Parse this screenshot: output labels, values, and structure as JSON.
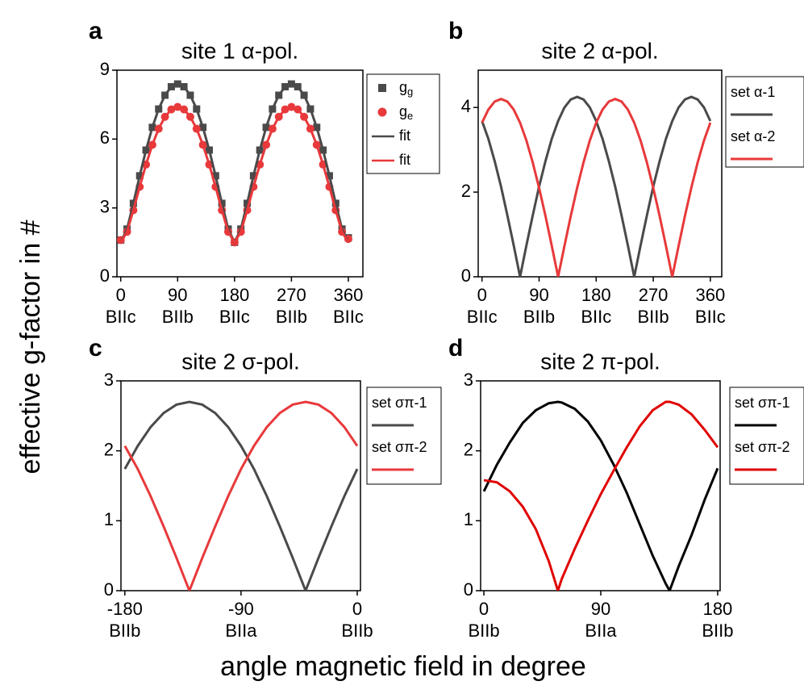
{
  "ylabel": "effective g-factor in #",
  "xlabel": "angle magnetic field in degree",
  "chart_data": [
    {
      "type": "line",
      "label": "a",
      "title": "site 1 α-pol.",
      "x": [
        0,
        10,
        20,
        30,
        40,
        50,
        60,
        70,
        80,
        90,
        100,
        110,
        120,
        130,
        140,
        150,
        160,
        170,
        180,
        190,
        200,
        210,
        220,
        230,
        240,
        250,
        260,
        270,
        280,
        290,
        300,
        310,
        320,
        330,
        340,
        350,
        360
      ],
      "xlim": [
        -6,
        383
      ],
      "xticks": [
        0,
        90,
        180,
        270,
        360
      ],
      "xtick_sublabels": [
        "BIIc",
        "BIIb",
        "BIIc",
        "BIIb",
        "BIIc"
      ],
      "ylim": [
        0,
        9
      ],
      "yticks": [
        0,
        3,
        6,
        9
      ],
      "series": [
        {
          "name": "g",
          "name_sub": "g",
          "color": "#4a4a4a",
          "marker": "square",
          "values": [
            1.6,
            2.08,
            3.2,
            4.4,
            5.52,
            6.51,
            7.31,
            7.91,
            8.28,
            8.4,
            8.28,
            7.91,
            7.31,
            6.51,
            5.52,
            4.4,
            3.2,
            2.08,
            1.5,
            2.08,
            3.2,
            4.4,
            5.52,
            6.51,
            7.31,
            7.91,
            8.28,
            8.4,
            8.28,
            7.91,
            7.31,
            6.51,
            5.52,
            4.4,
            3.2,
            2.08,
            1.7
          ]
        },
        {
          "name": "g",
          "name_sub": "e",
          "color": "#e8393b",
          "marker": "circle",
          "values": [
            1.6,
            1.96,
            2.9,
            3.92,
            4.89,
            5.75,
            6.45,
            6.97,
            7.29,
            7.4,
            7.29,
            6.97,
            6.45,
            5.75,
            4.89,
            3.92,
            2.9,
            1.96,
            1.5,
            1.96,
            2.9,
            3.92,
            4.89,
            5.75,
            6.45,
            6.97,
            7.29,
            7.4,
            7.29,
            6.97,
            6.45,
            5.75,
            4.89,
            3.92,
            2.9,
            1.96,
            1.65
          ]
        },
        {
          "name": "fit",
          "color": "#4a4a4a",
          "values": [
            1.5,
            2.08,
            3.2,
            4.4,
            5.52,
            6.51,
            7.31,
            7.91,
            8.28,
            8.4,
            8.28,
            7.91,
            7.31,
            6.51,
            5.52,
            4.4,
            3.2,
            2.08,
            1.5,
            2.08,
            3.2,
            4.4,
            5.52,
            6.51,
            7.31,
            7.91,
            8.28,
            8.4,
            8.28,
            7.91,
            7.31,
            6.51,
            5.52,
            4.4,
            3.2,
            2.08,
            1.5
          ]
        },
        {
          "name": "fit",
          "color": "#e8393b",
          "values": [
            1.5,
            1.96,
            2.9,
            3.92,
            4.89,
            5.75,
            6.45,
            6.97,
            7.29,
            7.4,
            7.29,
            6.97,
            6.45,
            5.75,
            4.89,
            3.92,
            2.9,
            1.96,
            1.5,
            1.96,
            2.9,
            3.92,
            4.89,
            5.75,
            6.45,
            6.97,
            7.29,
            7.4,
            7.29,
            6.97,
            6.45,
            5.75,
            4.89,
            3.92,
            2.9,
            1.96,
            1.5
          ]
        }
      ]
    },
    {
      "type": "line",
      "label": "b",
      "title": "site 2 α-pol.",
      "x": [
        0,
        10,
        20,
        30,
        40,
        50,
        60,
        70,
        80,
        90,
        100,
        110,
        120,
        130,
        140,
        150,
        160,
        170,
        180,
        190,
        200,
        210,
        220,
        230,
        240,
        250,
        260,
        270,
        280,
        290,
        300,
        310,
        320,
        330,
        340,
        350,
        360
      ],
      "xlim": [
        -6,
        378
      ],
      "xticks": [
        0,
        90,
        180,
        270,
        360
      ],
      "xtick_sublabels": [
        "BIIc",
        "BIIb",
        "BIIc",
        "BIIb",
        "BIIc"
      ],
      "ylim": [
        0,
        4.88
      ],
      "yticks": [
        0,
        2,
        4
      ],
      "series": [
        {
          "name": "set α-1",
          "color": "#4a4a4a",
          "values": [
            3.68,
            3.26,
            2.73,
            2.13,
            1.45,
            0.74,
            0,
            0.74,
            1.45,
            2.13,
            2.73,
            3.26,
            3.68,
            4.0,
            4.19,
            4.25,
            4.19,
            4.0,
            3.68,
            3.26,
            2.73,
            2.13,
            1.45,
            0.74,
            0,
            0.74,
            1.45,
            2.13,
            2.73,
            3.26,
            3.68,
            4.0,
            4.19,
            4.25,
            4.19,
            4.0,
            3.68
          ]
        },
        {
          "name": "set α-2",
          "color": "#e8393b",
          "values": [
            3.64,
            3.95,
            4.14,
            4.2,
            4.14,
            3.95,
            3.64,
            3.22,
            2.7,
            2.1,
            1.44,
            0.73,
            0,
            0.73,
            1.44,
            2.1,
            2.7,
            3.22,
            3.64,
            3.95,
            4.14,
            4.2,
            4.14,
            3.95,
            3.64,
            3.22,
            2.7,
            2.1,
            1.44,
            0.73,
            0,
            0.73,
            1.44,
            2.1,
            2.7,
            3.22,
            3.64
          ]
        }
      ]
    },
    {
      "type": "line",
      "label": "c",
      "title": "site 2 σ-pol.",
      "x": [
        -180,
        -170,
        -160,
        -150,
        -140,
        -130,
        -120,
        -110,
        -100,
        -90,
        -80,
        -70,
        -60,
        -50,
        -40,
        -30,
        -20,
        -10,
        0
      ],
      "xlim": [
        -183,
        2.5
      ],
      "xticks": [
        -180,
        -90,
        0
      ],
      "xtick_sublabels": [
        "BIIb",
        "BIIa",
        "BIIb"
      ],
      "ylim": [
        0,
        3
      ],
      "yticks": [
        0,
        1,
        2,
        3
      ],
      "series": [
        {
          "name": "set σπ-1",
          "color": "#4a4a4a",
          "values": [
            1.74,
            2.07,
            2.34,
            2.54,
            2.66,
            2.7,
            2.66,
            2.54,
            2.34,
            2.07,
            1.74,
            1.35,
            0.92,
            0.47,
            0,
            0.47,
            0.92,
            1.35,
            1.74
          ]
        },
        {
          "name": "set σπ-2",
          "color": "#e8393b",
          "values": [
            2.07,
            1.74,
            1.35,
            0.92,
            0.47,
            0,
            0.47,
            0.92,
            1.35,
            1.74,
            2.07,
            2.34,
            2.54,
            2.66,
            2.7,
            2.66,
            2.54,
            2.34,
            2.07
          ]
        }
      ]
    },
    {
      "type": "line",
      "label": "d",
      "title": "site 2 π-pol.",
      "x": [
        0,
        10,
        20,
        30,
        40,
        50,
        57,
        60,
        70,
        80,
        90,
        100,
        110,
        120,
        130,
        140,
        143,
        150,
        160,
        170,
        180
      ],
      "xlim": [
        -2.5,
        181.9
      ],
      "xticks": [
        0,
        90,
        180
      ],
      "xtick_sublabels": [
        "BIIb",
        "BIIa",
        "BIIb"
      ],
      "ylim": [
        0,
        3
      ],
      "yticks": [
        0,
        1,
        2,
        3
      ],
      "series": [
        {
          "name": "set σπ-1",
          "color": "#000000",
          "values": [
            1.42,
            1.8,
            2.12,
            2.4,
            2.58,
            2.68,
            2.7,
            2.69,
            2.6,
            2.42,
            2.15,
            1.8,
            1.4,
            0.95,
            0.5,
            0.1,
            0,
            0.35,
            0.8,
            1.3,
            1.75
          ]
        },
        {
          "name": "set σπ-2",
          "color": "#e00000",
          "values": [
            1.58,
            1.55,
            1.42,
            1.2,
            0.88,
            0.42,
            0,
            0.17,
            0.6,
            1.0,
            1.38,
            1.72,
            2.05,
            2.35,
            2.58,
            2.7,
            2.7,
            2.66,
            2.52,
            2.3,
            2.05
          ]
        }
      ]
    }
  ]
}
